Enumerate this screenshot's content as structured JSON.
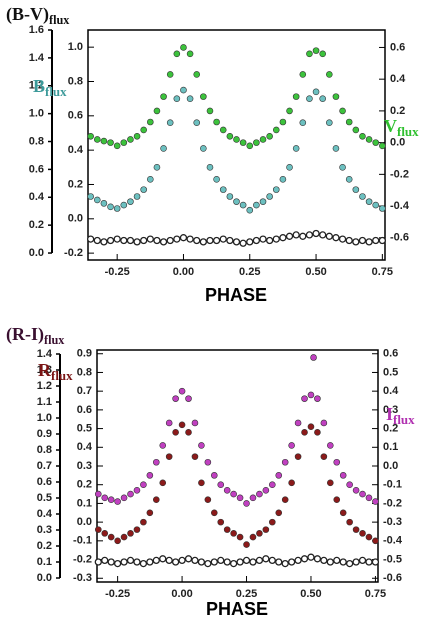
{
  "chart_data": [
    {
      "type": "scatter",
      "xlabel": "PHASE",
      "ylabel": [
        "B",
        "flux"
      ],
      "y2label": [
        "V",
        "flux"
      ],
      "y3label": [
        "(B-V)",
        "flux"
      ],
      "label_colors": {
        "ylabel": "#3d9a9a",
        "y2label": "#2fc02f",
        "y3label": "#111111"
      },
      "xlim": [
        -0.36,
        0.76
      ],
      "xticks": [
        -0.25,
        {
          "value": 0,
          "label": "0.00"
        },
        0.25,
        {
          "value": 0.5,
          "label": "0.50"
        },
        0.75
      ],
      "ylim": [
        -0.24,
        1.1
      ],
      "yticks": [
        -0.2,
        {
          "value": 0,
          "label": "0.0"
        },
        0.2,
        0.4,
        0.6,
        0.8,
        {
          "value": 1,
          "label": "1.0"
        }
      ],
      "y2lim": [
        -0.74,
        0.71
      ],
      "y2ticks": [
        -0.6,
        -0.4,
        -0.2,
        {
          "value": 0,
          "label": "0.0"
        },
        0.2,
        0.4,
        0.6
      ],
      "y3lim": [
        -0.05,
        1.6
      ],
      "y3ticks": [
        {
          "value": 0,
          "label": "0.0"
        },
        0.2,
        0.4,
        0.6,
        0.8,
        {
          "value": 1,
          "label": "1.0"
        },
        1.2,
        1.4,
        1.6
      ],
      "x": [
        -0.35,
        -0.325,
        -0.3,
        -0.275,
        -0.25,
        -0.225,
        -0.2,
        -0.175,
        -0.15,
        -0.125,
        -0.1,
        -0.075,
        -0.05,
        -0.025,
        0,
        0.025,
        0.05,
        0.075,
        0.1,
        0.125,
        0.15,
        0.175,
        0.2,
        0.225,
        0.25,
        0.275,
        0.3,
        0.325,
        0.35,
        0.375,
        0.4,
        0.425,
        0.45,
        0.475,
        0.5,
        0.525,
        0.55,
        0.575,
        0.6,
        0.625,
        0.65,
        0.675,
        0.7,
        0.725,
        0.75
      ],
      "series": [
        {
          "color": "#222222",
          "open": true,
          "axis": "y3",
          "values": [
            0.1,
            0.09,
            0.08,
            0.09,
            0.1,
            0.09,
            0.09,
            0.08,
            0.09,
            0.1,
            0.09,
            0.08,
            0.09,
            0.1,
            0.11,
            0.1,
            0.09,
            0.08,
            0.09,
            0.09,
            0.1,
            0.09,
            0.08,
            0.07,
            0.08,
            0.09,
            0.1,
            0.09,
            0.1,
            0.11,
            0.12,
            0.13,
            0.12,
            0.13,
            0.14,
            0.13,
            0.12,
            0.11,
            0.1,
            0.09,
            0.08,
            0.09,
            0.08,
            0.09,
            0.09
          ]
        },
        {
          "color": "#6cc0c0",
          "values": [
            0.13,
            0.11,
            0.09,
            0.07,
            0.06,
            0.08,
            0.1,
            0.13,
            0.17,
            0.23,
            0.3,
            0.41,
            0.56,
            0.7,
            0.75,
            0.7,
            0.56,
            0.41,
            0.3,
            0.23,
            0.17,
            0.13,
            0.1,
            0.08,
            0.05,
            0.08,
            0.1,
            0.13,
            0.17,
            0.23,
            0.3,
            0.41,
            0.56,
            0.7,
            0.74,
            0.7,
            0.56,
            0.41,
            0.3,
            0.23,
            0.17,
            0.13,
            0.1,
            0.08,
            0.06
          ]
        },
        {
          "color": "#3cc23c",
          "axis": "y2",
          "values": [
            0.04,
            0.02,
            0.01,
            0.0,
            -0.02,
            0.0,
            0.02,
            0.04,
            0.08,
            0.13,
            0.2,
            0.29,
            0.43,
            0.56,
            0.6,
            0.56,
            0.43,
            0.29,
            0.2,
            0.13,
            0.08,
            0.04,
            0.02,
            0.0,
            -0.02,
            0.0,
            0.02,
            0.04,
            0.08,
            0.13,
            0.2,
            0.29,
            0.43,
            0.56,
            0.58,
            0.56,
            0.43,
            0.29,
            0.2,
            0.13,
            0.08,
            0.04,
            0.02,
            0.0,
            -0.02
          ]
        }
      ]
    },
    {
      "type": "scatter",
      "xlabel": "PHASE",
      "ylabel": [
        "R",
        "flux"
      ],
      "y2label": [
        "I",
        "flux"
      ],
      "y3label": [
        "(R-I)",
        "flux"
      ],
      "label_colors": {
        "ylabel": "#7a1414",
        "y2label": "#b02fb0",
        "y3label": "#3a1030"
      },
      "xlim": [
        -0.33,
        0.76
      ],
      "xticks": [
        -0.25,
        {
          "value": 0,
          "label": "0.00"
        },
        0.25,
        {
          "value": 0.5,
          "label": "0.50"
        },
        0.75
      ],
      "ylim": [
        -0.32,
        0.92
      ],
      "yticks": [
        -0.3,
        -0.2,
        -0.1,
        {
          "value": 0,
          "label": "0.0"
        },
        0.1,
        0.2,
        0.3,
        0.4,
        0.5,
        0.6,
        0.7,
        0.8,
        0.9
      ],
      "y2lim": [
        -0.62,
        0.62
      ],
      "y2ticks": [
        -0.6,
        -0.5,
        -0.4,
        -0.3,
        -0.2,
        -0.1,
        {
          "value": 0,
          "label": "0.0"
        },
        0.1,
        0.2,
        0.3,
        0.4,
        0.5,
        0.6
      ],
      "y3lim": [
        -0.025,
        1.425
      ],
      "y3ticks": [
        {
          "value": 0,
          "label": "0.0"
        },
        0.1,
        0.2,
        0.3,
        0.4,
        0.5,
        0.6,
        0.7,
        0.8,
        0.9,
        {
          "value": 1,
          "label": "1.0"
        },
        1.1,
        1.2,
        1.3,
        1.4
      ],
      "x": [
        -0.325,
        -0.3,
        -0.275,
        -0.25,
        -0.225,
        -0.2,
        -0.175,
        -0.15,
        -0.125,
        -0.1,
        -0.075,
        -0.05,
        -0.025,
        0,
        0.025,
        0.05,
        0.075,
        0.1,
        0.125,
        0.15,
        0.175,
        0.2,
        0.225,
        0.25,
        0.275,
        0.3,
        0.325,
        0.35,
        0.375,
        0.4,
        0.425,
        0.45,
        0.475,
        0.5,
        0.525,
        0.55,
        0.575,
        0.6,
        0.625,
        0.65,
        0.675,
        0.7,
        0.725,
        0.75
      ],
      "series": [
        {
          "color": "#222222",
          "open": true,
          "axis": "y3",
          "values": [
            0.1,
            0.11,
            0.1,
            0.09,
            0.1,
            0.11,
            0.1,
            0.09,
            0.1,
            0.11,
            0.12,
            0.11,
            0.1,
            0.11,
            0.12,
            0.11,
            0.1,
            0.09,
            0.1,
            0.11,
            0.1,
            0.09,
            0.1,
            0.11,
            0.1,
            0.11,
            0.12,
            0.11,
            0.1,
            0.09,
            0.1,
            0.11,
            0.12,
            0.13,
            0.12,
            0.11,
            0.1,
            0.11,
            0.1,
            0.09,
            0.1,
            0.11,
            0.1,
            0.1
          ]
        },
        {
          "color": "#8b1a1a",
          "values": [
            -0.04,
            -0.06,
            -0.08,
            -0.1,
            -0.08,
            -0.06,
            -0.04,
            0.0,
            0.05,
            0.12,
            0.21,
            0.35,
            0.48,
            0.52,
            0.48,
            0.35,
            0.21,
            0.12,
            0.05,
            0.0,
            -0.04,
            -0.06,
            -0.08,
            -0.12,
            -0.08,
            -0.06,
            -0.04,
            0.0,
            0.05,
            0.12,
            0.21,
            0.35,
            0.48,
            0.51,
            0.48,
            0.35,
            0.21,
            0.12,
            0.05,
            0.0,
            -0.04,
            -0.06,
            -0.08,
            -0.1
          ]
        },
        {
          "color": "#c040c0",
          "axis": "y2",
          "x": [
            -0.325,
            -0.3,
            -0.275,
            -0.25,
            -0.225,
            -0.2,
            -0.175,
            -0.15,
            -0.125,
            -0.1,
            -0.075,
            -0.05,
            -0.025,
            0,
            0.025,
            0.05,
            0.075,
            0.1,
            0.125,
            0.15,
            0.175,
            0.2,
            0.225,
            0.25,
            0.275,
            0.3,
            0.325,
            0.35,
            0.375,
            0.4,
            0.425,
            0.45,
            0.475,
            0.5,
            0.51,
            0.525,
            0.55,
            0.575,
            0.6,
            0.625,
            0.65,
            0.675,
            0.7,
            0.725,
            0.75
          ],
          "values": [
            -0.15,
            -0.17,
            -0.18,
            -0.19,
            -0.17,
            -0.15,
            -0.13,
            -0.1,
            -0.05,
            0.02,
            0.11,
            0.23,
            0.36,
            0.4,
            0.36,
            0.23,
            0.11,
            0.02,
            -0.05,
            -0.1,
            -0.13,
            -0.15,
            -0.17,
            -0.2,
            -0.17,
            -0.15,
            -0.13,
            -0.1,
            -0.05,
            0.02,
            0.11,
            0.23,
            0.36,
            0.38,
            0.58,
            0.36,
            0.23,
            0.11,
            0.02,
            -0.05,
            -0.1,
            -0.13,
            -0.15,
            -0.17,
            -0.19
          ]
        }
      ]
    }
  ]
}
